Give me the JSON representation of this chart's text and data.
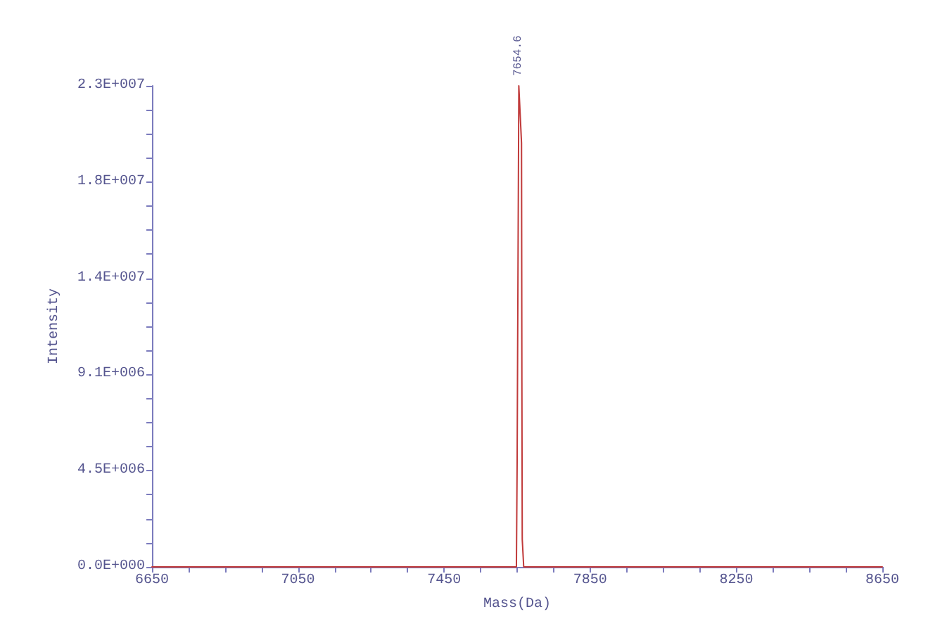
{
  "chart_data": {
    "type": "line",
    "xlabel": "Mass(Da)",
    "ylabel": "Intensity",
    "x": [
      6650,
      7644,
      7648,
      7650,
      7654.6,
      7662,
      7663,
      7664,
      7668,
      8650
    ],
    "series": [
      {
        "color": "#c03a3a",
        "values": [
          0,
          0,
          0,
          5000000,
          22700000,
          20000000,
          8700000,
          1300000,
          0,
          0
        ]
      }
    ],
    "xlim": [
      6650,
      8650
    ],
    "xticks": [
      6650,
      {
        "value": 6750,
        "label": null
      },
      {
        "value": 6850,
        "label": null
      },
      {
        "value": 6950,
        "label": null
      },
      7050,
      {
        "value": 7150,
        "label": null
      },
      {
        "value": 7250,
        "label": null
      },
      {
        "value": 7350,
        "label": null
      },
      7450,
      {
        "value": 7550,
        "label": null
      },
      {
        "value": 7650,
        "label": null
      },
      {
        "value": 7750,
        "label": null
      },
      7850,
      {
        "value": 7950,
        "label": null
      },
      {
        "value": 8050,
        "label": null
      },
      {
        "value": 8150,
        "label": null
      },
      8250,
      {
        "value": 8350,
        "label": null
      },
      {
        "value": 8450,
        "label": null
      },
      {
        "value": 8550,
        "label": null
      },
      8650
    ],
    "ylim": [
      0,
      22700000
    ],
    "yticks": [
      {
        "value": 0,
        "label": "0.0E+000"
      },
      {
        "value": 1135000,
        "label": null
      },
      {
        "value": 2270000,
        "label": null
      },
      {
        "value": 3405000,
        "label": null
      },
      {
        "value": 4540000,
        "label": "4.5E+006"
      },
      {
        "value": 5675000,
        "label": null
      },
      {
        "value": 6810000,
        "label": null
      },
      {
        "value": 7945000,
        "label": null
      },
      {
        "value": 9080000,
        "label": "9.1E+006"
      },
      {
        "value": 10215000,
        "label": null
      },
      {
        "value": 11350000,
        "label": null
      },
      {
        "value": 12485000,
        "label": null
      },
      {
        "value": 13620000,
        "label": "1.4E+007"
      },
      {
        "value": 14755000,
        "label": null
      },
      {
        "value": 15890000,
        "label": null
      },
      {
        "value": 17025000,
        "label": null
      },
      {
        "value": 18160000,
        "label": "1.8E+007"
      },
      {
        "value": 19295000,
        "label": null
      },
      {
        "value": 20430000,
        "label": null
      },
      {
        "value": 21565000,
        "label": null
      },
      {
        "value": 22700000,
        "label": "2.3E+007"
      }
    ],
    "grid": false,
    "annotations": [
      {
        "text": "7654.6",
        "x": 7654.6,
        "y": 22700000
      }
    ]
  }
}
